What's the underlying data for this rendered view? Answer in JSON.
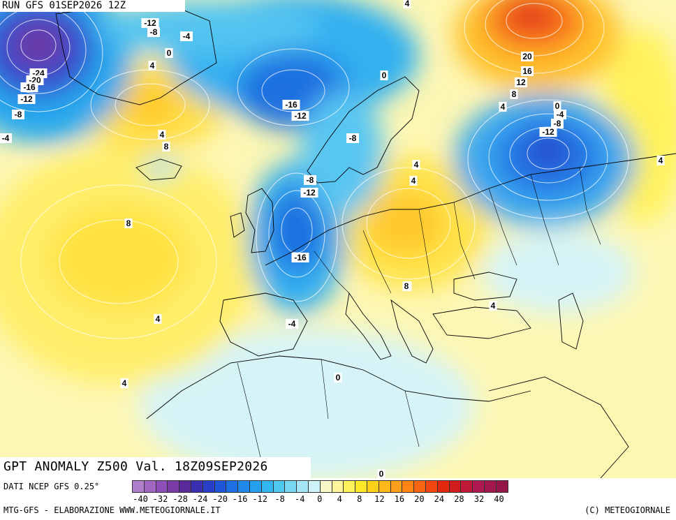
{
  "header": {
    "run_label": "RUN GFS 01SEP2026 12Z"
  },
  "title": {
    "text": "GPT ANOMALY Z500 Val. 18Z09SEP2026"
  },
  "footer": {
    "source": "DATI NCEP GFS 0.25°",
    "credit": "MTG-GFS - ELABORAZIONE WWW.METEOGIORNALE.IT",
    "copyright": "(C) METEOGIORNALE"
  },
  "legend": {
    "colors": [
      "#b07fcc",
      "#a066c2",
      "#8e4fb8",
      "#7a3aa5",
      "#5a2a9a",
      "#3a2fb0",
      "#2a3fc8",
      "#1f55d8",
      "#1e6fe3",
      "#2187ea",
      "#25a0f0",
      "#33b6f2",
      "#4fc8f0",
      "#78d8f2",
      "#a4e6f5",
      "#cdf3f8",
      "#f7f7c8",
      "#fff59a",
      "#fff25a",
      "#ffe82a",
      "#ffd11a",
      "#ffb81c",
      "#ff9f1a",
      "#ff8414",
      "#fa6512",
      "#f2460e",
      "#e4280c",
      "#d01c1c",
      "#c01a38",
      "#b01850",
      "#a2184e",
      "#951648"
    ],
    "tick_labels": [
      "-40",
      "-32",
      "-28",
      "-24",
      "-20",
      "-16",
      "-12",
      "-8",
      "-4",
      "0",
      "4",
      "8",
      "12",
      "16",
      "20",
      "24",
      "28",
      "32",
      "40"
    ]
  },
  "contour_labels": [
    "-12",
    "-8",
    "-4",
    "0",
    "4",
    "-24",
    "-20",
    "-16",
    "-12",
    "-8",
    "-4",
    "4",
    "8",
    "4",
    "-16",
    "-12",
    "0",
    "-8",
    "-8",
    "-12",
    "-16",
    "4",
    "8",
    "20",
    "16",
    "12",
    "8",
    "4",
    "0",
    "-4",
    "-8",
    "-12",
    "4",
    "8",
    "4",
    "-4",
    "4",
    "0",
    "0",
    "8",
    "8",
    "4",
    "4",
    "8",
    "4"
  ],
  "anomaly_centers": [
    {
      "name": "greenland-low",
      "color": "#6e3aa6"
    },
    {
      "name": "iceland-high",
      "color": "#ffd34a"
    },
    {
      "name": "norway-low",
      "color": "#2f7be6"
    },
    {
      "name": "russia-high",
      "color": "#ef5a1e"
    },
    {
      "name": "ural-low",
      "color": "#2e7ee8"
    },
    {
      "name": "central-europe-high",
      "color": "#ffd13a"
    },
    {
      "name": "biscay-low",
      "color": "#2d6fdd"
    },
    {
      "name": "atlantic-high",
      "color": "#ffe65a"
    }
  ]
}
